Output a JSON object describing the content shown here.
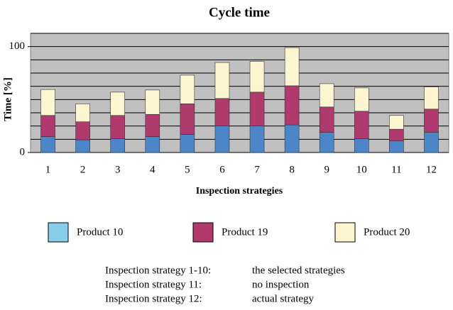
{
  "chart_data": {
    "type": "stacked_bar",
    "title": "Cycle time",
    "x_label": "Inspection strategies",
    "y_label": "Time [%]",
    "categories": [
      "1",
      "2",
      "3",
      "4",
      "5",
      "6",
      "7",
      "8",
      "9",
      "10",
      "11",
      "12"
    ],
    "series": [
      {
        "name": "Product 10",
        "color": "#4a86c8",
        "legend_color": "#87ceeb",
        "values": [
          15,
          12,
          13,
          15,
          17,
          25,
          25,
          26,
          19,
          13,
          11,
          19
        ]
      },
      {
        "name": "Product 19",
        "color": "#b03a6e",
        "legend_color": "#b03a6e",
        "values": [
          20,
          17,
          22,
          21,
          29,
          26,
          32,
          37,
          24,
          26,
          11,
          22
        ]
      },
      {
        "name": "Product 20",
        "color": "#fdf6d0",
        "legend_color": "#fdf6d0",
        "values": [
          24.5,
          17,
          22,
          23,
          27,
          34,
          29,
          36,
          22,
          22,
          13,
          21
        ]
      }
    ],
    "ylim": [
      0,
      112.5
    ],
    "yticks": [
      0,
      100
    ],
    "ygrid": [
      12.5,
      25,
      37.5,
      50,
      62.5,
      75,
      87.5,
      100,
      112.5
    ],
    "grid": true,
    "notes": [
      {
        "label": "Inspection strategy 1-10:",
        "text": "the selected strategies"
      },
      {
        "label": "Inspection strategy 11:",
        "text": "no inspection"
      },
      {
        "label": "Inspection strategy 12:",
        "text": "actual strategy"
      }
    ]
  }
}
